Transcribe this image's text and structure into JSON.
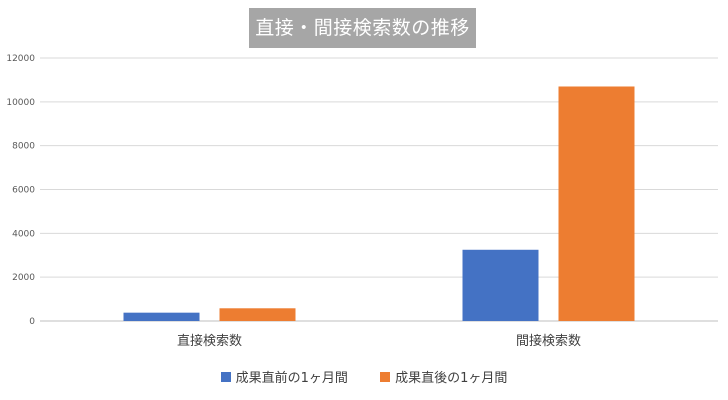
{
  "chart_data": {
    "type": "bar",
    "title": "直接・間接検索数の推移",
    "categories": [
      "直接検索数",
      "間接検索数"
    ],
    "series": [
      {
        "name": "成果直前の1ヶ月間",
        "values": [
          380,
          3250
        ],
        "color": "#4472c4"
      },
      {
        "name": "成果直後の1ヶ月間",
        "values": [
          580,
          10700
        ],
        "color": "#ed7d31"
      }
    ],
    "ylim": [
      0,
      12000
    ],
    "yticks": [
      "0",
      "2000",
      "4000",
      "6000",
      "8000",
      "10000",
      "12000"
    ],
    "grid": true,
    "legend": "bottom"
  }
}
